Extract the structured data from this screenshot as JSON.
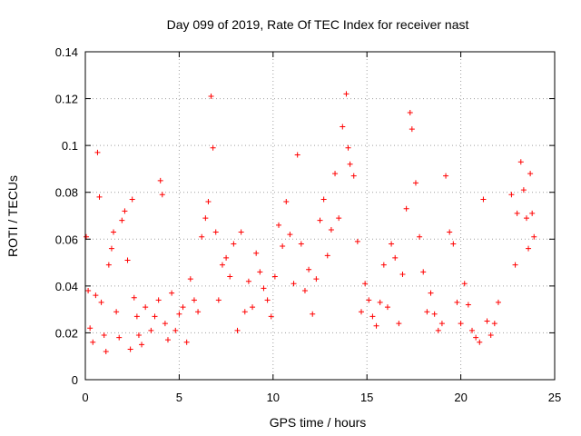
{
  "chart_data": {
    "type": "scatter",
    "title": "Day 099 of 2019, Rate Of TEC Index for receiver nast",
    "xlabel": "GPS time / hours",
    "ylabel": "ROTI / TECUs",
    "xlim": [
      0,
      25
    ],
    "ylim": [
      0,
      0.14
    ],
    "x_ticks": [
      0,
      5,
      10,
      15,
      20,
      25
    ],
    "x_tick_labels": [
      "0",
      "5",
      "10",
      "15",
      "20",
      "25"
    ],
    "y_ticks": [
      0,
      0.02,
      0.04,
      0.06,
      0.08,
      0.1,
      0.12,
      0.14
    ],
    "y_tick_labels": [
      "0",
      "0.02",
      "0.04",
      "0.06",
      "0.08",
      "0.1",
      "0.12",
      "0.14"
    ],
    "grid": true,
    "marker": "+",
    "series": [
      {
        "name": "ROTI",
        "color": "#ff0000",
        "x": [
          0.05,
          0.15,
          0.25,
          0.4,
          0.55,
          0.65,
          0.75,
          0.85,
          1.0,
          1.1,
          1.25,
          1.4,
          1.5,
          1.65,
          1.8,
          1.95,
          2.1,
          2.25,
          2.4,
          2.5,
          2.6,
          2.75,
          2.85,
          3.0,
          3.2,
          3.5,
          3.7,
          3.9,
          4.0,
          4.1,
          4.25,
          4.4,
          4.6,
          4.8,
          5.0,
          5.2,
          5.4,
          5.6,
          5.8,
          6.0,
          6.2,
          6.4,
          6.55,
          6.7,
          6.8,
          6.95,
          7.1,
          7.3,
          7.5,
          7.7,
          7.9,
          8.1,
          8.3,
          8.5,
          8.7,
          8.9,
          9.1,
          9.3,
          9.5,
          9.7,
          9.9,
          10.1,
          10.3,
          10.5,
          10.7,
          10.9,
          11.1,
          11.3,
          11.5,
          11.7,
          11.9,
          12.1,
          12.3,
          12.5,
          12.7,
          12.9,
          13.1,
          13.3,
          13.5,
          13.7,
          13.9,
          14.0,
          14.1,
          14.3,
          14.5,
          14.7,
          14.9,
          15.1,
          15.3,
          15.5,
          15.7,
          15.9,
          16.1,
          16.3,
          16.5,
          16.7,
          16.9,
          17.1,
          17.3,
          17.4,
          17.6,
          17.8,
          18.0,
          18.2,
          18.4,
          18.6,
          18.8,
          19.0,
          19.2,
          19.4,
          19.6,
          19.8,
          20.0,
          20.2,
          20.4,
          20.6,
          20.8,
          21.0,
          21.2,
          21.4,
          21.6,
          21.8,
          22.0,
          22.7,
          22.9,
          23.0,
          23.2,
          23.35,
          23.5,
          23.6,
          23.7,
          23.8,
          23.9
        ],
        "y": [
          0.061,
          0.038,
          0.022,
          0.016,
          0.036,
          0.097,
          0.078,
          0.033,
          0.019,
          0.012,
          0.049,
          0.056,
          0.063,
          0.029,
          0.018,
          0.068,
          0.072,
          0.051,
          0.013,
          0.077,
          0.035,
          0.027,
          0.019,
          0.015,
          0.031,
          0.021,
          0.027,
          0.034,
          0.085,
          0.079,
          0.024,
          0.017,
          0.037,
          0.021,
          0.028,
          0.031,
          0.016,
          0.043,
          0.034,
          0.029,
          0.061,
          0.069,
          0.076,
          0.121,
          0.099,
          0.063,
          0.034,
          0.049,
          0.052,
          0.044,
          0.058,
          0.021,
          0.063,
          0.029,
          0.042,
          0.031,
          0.054,
          0.046,
          0.039,
          0.034,
          0.027,
          0.044,
          0.066,
          0.057,
          0.076,
          0.062,
          0.041,
          0.096,
          0.058,
          0.038,
          0.047,
          0.028,
          0.043,
          0.068,
          0.077,
          0.053,
          0.064,
          0.088,
          0.069,
          0.108,
          0.122,
          0.099,
          0.092,
          0.087,
          0.059,
          0.029,
          0.041,
          0.034,
          0.027,
          0.023,
          0.033,
          0.049,
          0.031,
          0.058,
          0.052,
          0.024,
          0.045,
          0.073,
          0.114,
          0.107,
          0.084,
          0.061,
          0.046,
          0.029,
          0.037,
          0.028,
          0.021,
          0.024,
          0.087,
          0.063,
          0.058,
          0.033,
          0.024,
          0.041,
          0.032,
          0.021,
          0.018,
          0.016,
          0.077,
          0.025,
          0.019,
          0.024,
          0.033,
          0.079,
          0.049,
          0.071,
          0.093,
          0.081,
          0.069,
          0.056,
          0.088,
          0.071,
          0.061
        ]
      }
    ]
  }
}
